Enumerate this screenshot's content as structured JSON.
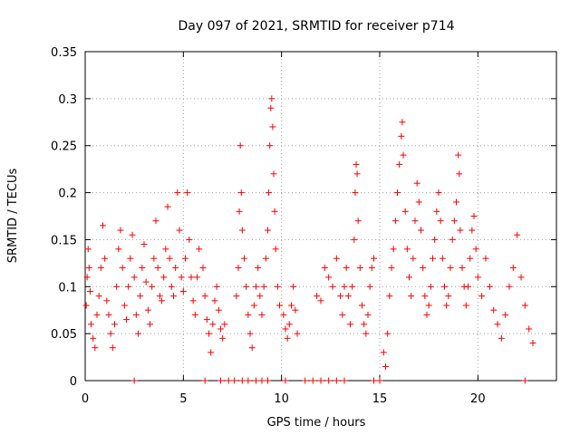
{
  "chart_data": {
    "type": "scatter",
    "title": "Day 097 of 2021, SRMTID for receiver p714",
    "xlabel": "GPS time / hours",
    "ylabel": "SRMTID / TECUs",
    "xlim": [
      0,
      24
    ],
    "ylim": [
      0,
      0.35
    ],
    "x_ticks": [
      0,
      5,
      10,
      15,
      20
    ],
    "y_ticks": [
      0,
      0.05,
      0.1,
      0.15,
      0.2,
      0.25,
      0.3,
      0.35
    ],
    "x_tick_labels": [
      "0",
      "5",
      "10",
      "15",
      "20"
    ],
    "y_tick_labels": [
      "0",
      "0.05",
      "0.1",
      "0.15",
      "0.2",
      "0.25",
      "0.3",
      "0.35"
    ],
    "grid": true,
    "series": [
      {
        "name": "SRMTID",
        "marker": "plus",
        "color": "#ff0000",
        "points": [
          [
            0.05,
            0.08
          ],
          [
            0.1,
            0.11
          ],
          [
            0.15,
            0.14
          ],
          [
            0.2,
            0.12
          ],
          [
            0.25,
            0.095
          ],
          [
            0.3,
            0.06
          ],
          [
            0.4,
            0.045
          ],
          [
            0.5,
            0.035
          ],
          [
            0.6,
            0.07
          ],
          [
            0.7,
            0.09
          ],
          [
            0.8,
            0.12
          ],
          [
            0.9,
            0.165
          ],
          [
            1.0,
            0.13
          ],
          [
            1.1,
            0.085
          ],
          [
            1.2,
            0.07
          ],
          [
            1.3,
            0.05
          ],
          [
            1.4,
            0.035
          ],
          [
            1.5,
            0.06
          ],
          [
            1.6,
            0.1
          ],
          [
            1.7,
            0.14
          ],
          [
            1.8,
            0.16
          ],
          [
            1.9,
            0.12
          ],
          [
            2.0,
            0.08
          ],
          [
            2.1,
            0.065
          ],
          [
            2.2,
            0.1
          ],
          [
            2.3,
            0.13
          ],
          [
            2.4,
            0.155
          ],
          [
            2.5,
            0.11
          ],
          [
            2.6,
            0.07
          ],
          [
            2.7,
            0.05
          ],
          [
            2.8,
            0.09
          ],
          [
            2.9,
            0.12
          ],
          [
            3.0,
            0.145
          ],
          [
            3.1,
            0.105
          ],
          [
            3.2,
            0.075
          ],
          [
            3.3,
            0.06
          ],
          [
            3.4,
            0.1
          ],
          [
            3.5,
            0.13
          ],
          [
            3.6,
            0.17
          ],
          [
            3.7,
            0.12
          ],
          [
            3.8,
            0.09
          ],
          [
            3.9,
            0.085
          ],
          [
            4.0,
            0.11
          ],
          [
            4.1,
            0.14
          ],
          [
            4.2,
            0.185
          ],
          [
            4.3,
            0.13
          ],
          [
            4.4,
            0.1
          ],
          [
            4.5,
            0.09
          ],
          [
            4.6,
            0.12
          ],
          [
            4.7,
            0.2
          ],
          [
            4.8,
            0.16
          ],
          [
            4.9,
            0.11
          ],
          [
            5.0,
            0.095
          ],
          [
            5.1,
            0.13
          ],
          [
            5.2,
            0.2
          ],
          [
            5.3,
            0.15
          ],
          [
            5.4,
            0.11
          ],
          [
            5.5,
            0.085
          ],
          [
            5.6,
            0.07
          ],
          [
            5.7,
            0.11
          ],
          [
            5.8,
            0.14
          ],
          [
            6.0,
            0.12
          ],
          [
            6.1,
            0.09
          ],
          [
            6.2,
            0.065
          ],
          [
            6.3,
            0.05
          ],
          [
            6.4,
            0.03
          ],
          [
            6.5,
            0.06
          ],
          [
            6.6,
            0.085
          ],
          [
            6.7,
            0.1
          ],
          [
            6.8,
            0.075
          ],
          [
            6.9,
            0.055
          ],
          [
            7.0,
            0.045
          ],
          [
            7.1,
            0.06
          ],
          [
            7.7,
            0.09
          ],
          [
            7.8,
            0.12
          ],
          [
            7.85,
            0.18
          ],
          [
            7.9,
            0.25
          ],
          [
            7.95,
            0.2
          ],
          [
            8.0,
            0.16
          ],
          [
            8.1,
            0.13
          ],
          [
            8.2,
            0.1
          ],
          [
            8.3,
            0.07
          ],
          [
            8.4,
            0.05
          ],
          [
            8.5,
            0.035
          ],
          [
            8.6,
            0.08
          ],
          [
            8.7,
            0.1
          ],
          [
            8.8,
            0.12
          ],
          [
            8.9,
            0.09
          ],
          [
            9.0,
            0.07
          ],
          [
            9.1,
            0.1
          ],
          [
            9.2,
            0.13
          ],
          [
            9.3,
            0.16
          ],
          [
            9.35,
            0.2
          ],
          [
            9.4,
            0.25
          ],
          [
            9.45,
            0.29
          ],
          [
            9.5,
            0.3
          ],
          [
            9.55,
            0.27
          ],
          [
            9.6,
            0.22
          ],
          [
            9.65,
            0.18
          ],
          [
            9.7,
            0.14
          ],
          [
            9.8,
            0.1
          ],
          [
            9.9,
            0.08
          ],
          [
            10.1,
            0.07
          ],
          [
            10.2,
            0.055
          ],
          [
            10.3,
            0.045
          ],
          [
            10.4,
            0.06
          ],
          [
            10.5,
            0.08
          ],
          [
            10.6,
            0.1
          ],
          [
            10.7,
            0.075
          ],
          [
            10.8,
            0.05
          ],
          [
            11.8,
            0.09
          ],
          [
            12.0,
            0.085
          ],
          [
            12.2,
            0.12
          ],
          [
            12.4,
            0.11
          ],
          [
            12.6,
            0.1
          ],
          [
            12.8,
            0.13
          ],
          [
            13.0,
            0.09
          ],
          [
            13.1,
            0.07
          ],
          [
            13.2,
            0.1
          ],
          [
            13.3,
            0.12
          ],
          [
            13.4,
            0.09
          ],
          [
            13.5,
            0.06
          ],
          [
            13.6,
            0.1
          ],
          [
            13.7,
            0.15
          ],
          [
            13.75,
            0.2
          ],
          [
            13.8,
            0.23
          ],
          [
            13.85,
            0.22
          ],
          [
            13.9,
            0.17
          ],
          [
            14.0,
            0.12
          ],
          [
            14.1,
            0.08
          ],
          [
            14.2,
            0.06
          ],
          [
            14.3,
            0.05
          ],
          [
            14.4,
            0.07
          ],
          [
            14.5,
            0.1
          ],
          [
            14.6,
            0.12
          ],
          [
            14.7,
            0.13
          ],
          [
            15.2,
            0.03
          ],
          [
            15.3,
            0.015
          ],
          [
            15.4,
            0.05
          ],
          [
            15.5,
            0.09
          ],
          [
            15.6,
            0.12
          ],
          [
            15.7,
            0.14
          ],
          [
            15.8,
            0.17
          ],
          [
            15.9,
            0.2
          ],
          [
            16.0,
            0.23
          ],
          [
            16.1,
            0.26
          ],
          [
            16.15,
            0.275
          ],
          [
            16.2,
            0.24
          ],
          [
            16.3,
            0.18
          ],
          [
            16.4,
            0.14
          ],
          [
            16.5,
            0.11
          ],
          [
            16.6,
            0.09
          ],
          [
            16.7,
            0.13
          ],
          [
            16.8,
            0.17
          ],
          [
            16.9,
            0.21
          ],
          [
            17.0,
            0.19
          ],
          [
            17.1,
            0.16
          ],
          [
            17.2,
            0.12
          ],
          [
            17.3,
            0.09
          ],
          [
            17.4,
            0.07
          ],
          [
            17.5,
            0.08
          ],
          [
            17.6,
            0.1
          ],
          [
            17.7,
            0.13
          ],
          [
            17.8,
            0.15
          ],
          [
            17.9,
            0.18
          ],
          [
            18.0,
            0.2
          ],
          [
            18.1,
            0.17
          ],
          [
            18.2,
            0.13
          ],
          [
            18.3,
            0.1
          ],
          [
            18.4,
            0.08
          ],
          [
            18.5,
            0.09
          ],
          [
            18.6,
            0.12
          ],
          [
            18.7,
            0.15
          ],
          [
            18.8,
            0.17
          ],
          [
            18.9,
            0.19
          ],
          [
            19.0,
            0.24
          ],
          [
            19.05,
            0.22
          ],
          [
            19.1,
            0.16
          ],
          [
            19.2,
            0.12
          ],
          [
            19.3,
            0.1
          ],
          [
            19.4,
            0.08
          ],
          [
            19.5,
            0.1
          ],
          [
            19.6,
            0.13
          ],
          [
            19.7,
            0.16
          ],
          [
            19.8,
            0.175
          ],
          [
            19.9,
            0.14
          ],
          [
            20.0,
            0.11
          ],
          [
            20.2,
            0.09
          ],
          [
            20.4,
            0.13
          ],
          [
            20.6,
            0.1
          ],
          [
            20.8,
            0.075
          ],
          [
            21.0,
            0.06
          ],
          [
            21.2,
            0.045
          ],
          [
            21.4,
            0.07
          ],
          [
            21.6,
            0.1
          ],
          [
            21.8,
            0.12
          ],
          [
            22.0,
            0.155
          ],
          [
            22.2,
            0.11
          ],
          [
            22.4,
            0.08
          ],
          [
            22.6,
            0.055
          ],
          [
            22.8,
            0.04
          ]
        ]
      }
    ],
    "zero_markers": [
      2.5,
      6.1,
      6.9,
      7.3,
      7.6,
      8.0,
      8.3,
      8.7,
      9.0,
      9.3,
      10.2,
      11.2,
      11.6,
      12.0,
      12.4,
      12.8,
      13.2,
      14.7,
      15.0,
      22.4
    ],
    "colors": {
      "marker": "#ff0000",
      "axis": "#000000",
      "grid": "#a0a0a0",
      "background": "#ffffff"
    }
  }
}
